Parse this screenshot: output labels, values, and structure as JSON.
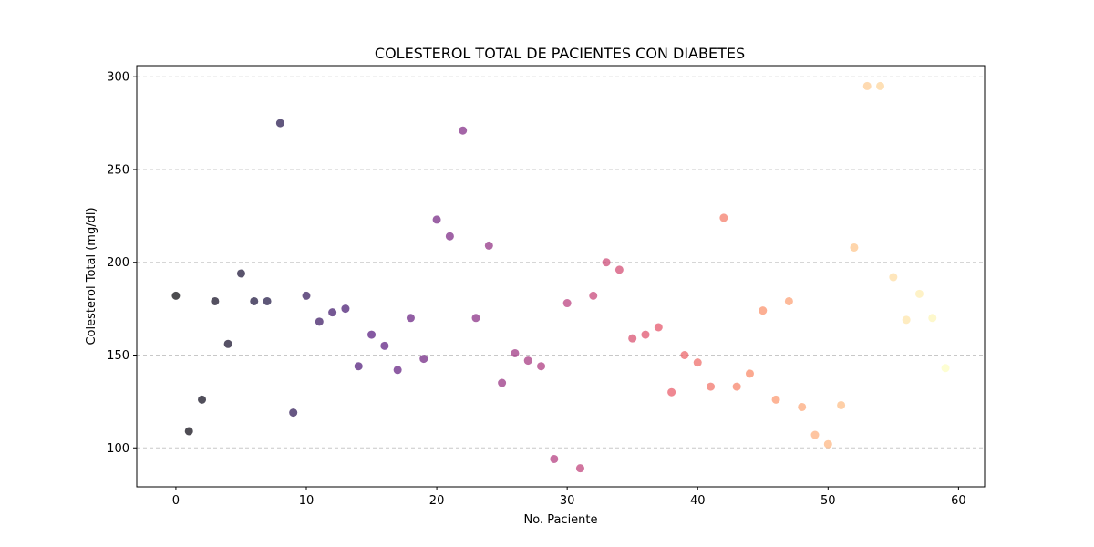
{
  "chart_data": {
    "type": "scatter",
    "title": "COLESTEROL TOTAL DE PACIENTES CON DIABETES",
    "xlabel": "No. Paciente",
    "ylabel": "Colesterol Total (mg/dl)",
    "xlim": [
      -3,
      62
    ],
    "ylim": [
      79,
      306
    ],
    "xticks": [
      0,
      10,
      20,
      30,
      40,
      50,
      60
    ],
    "yticks": [
      100,
      150,
      200,
      250,
      300
    ],
    "grid": "y-dashed",
    "colormap": "magma",
    "marker_alpha": 0.7,
    "x": [
      0,
      1,
      2,
      3,
      4,
      5,
      6,
      7,
      8,
      9,
      10,
      11,
      12,
      13,
      14,
      15,
      16,
      17,
      18,
      19,
      20,
      21,
      22,
      23,
      24,
      25,
      26,
      27,
      28,
      29,
      30,
      31,
      32,
      33,
      34,
      35,
      36,
      37,
      38,
      39,
      40,
      41,
      42,
      43,
      44,
      45,
      46,
      47,
      48,
      49,
      50,
      51,
      52,
      53,
      54,
      55,
      56,
      57,
      58,
      59
    ],
    "y": [
      182,
      109,
      126,
      179,
      156,
      194,
      179,
      179,
      275,
      119,
      182,
      168,
      173,
      175,
      144,
      161,
      155,
      142,
      170,
      148,
      223,
      214,
      271,
      170,
      209,
      135,
      151,
      147,
      144,
      94,
      178,
      89,
      182,
      200,
      196,
      159,
      161,
      165,
      130,
      150,
      146,
      133,
      224,
      133,
      140,
      174,
      126,
      179,
      122,
      107,
      102,
      123,
      208,
      295,
      295,
      192,
      169,
      183,
      170,
      143
    ]
  }
}
